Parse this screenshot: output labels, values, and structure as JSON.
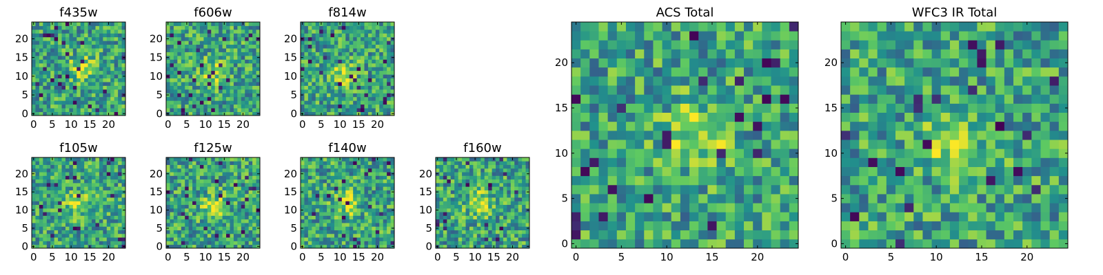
{
  "chart_data": [
    {
      "id": "f435w",
      "type": "heatmap",
      "title": "f435w",
      "grid_size": 25,
      "xlim": [
        -0.5,
        24.5
      ],
      "ylim": [
        -0.5,
        24.5
      ],
      "x_ticks": [
        "0",
        "5",
        "10",
        "15",
        "20"
      ],
      "y_ticks": [
        "0",
        "5",
        "10",
        "15",
        "20"
      ],
      "colormap": "viridis",
      "hotspot": [
        13,
        12
      ],
      "seed": 11
    },
    {
      "id": "f606w",
      "type": "heatmap",
      "title": "f606w",
      "grid_size": 25,
      "xlim": [
        -0.5,
        24.5
      ],
      "ylim": [
        -0.5,
        24.5
      ],
      "x_ticks": [
        "0",
        "5",
        "10",
        "15",
        "20"
      ],
      "y_ticks": [
        "0",
        "5",
        "10",
        "15",
        "20"
      ],
      "colormap": "viridis",
      "hotspot": [
        12,
        11
      ],
      "seed": 23
    },
    {
      "id": "f814w",
      "type": "heatmap",
      "title": "f814w",
      "grid_size": 25,
      "xlim": [
        -0.5,
        24.5
      ],
      "ylim": [
        -0.5,
        24.5
      ],
      "x_ticks": [
        "0",
        "5",
        "10",
        "15",
        "20"
      ],
      "y_ticks": [
        "0",
        "5",
        "10",
        "15",
        "20"
      ],
      "colormap": "viridis",
      "hotspot": [
        11,
        11
      ],
      "seed": 37
    },
    {
      "id": "f105w",
      "type": "heatmap",
      "title": "f105w",
      "grid_size": 25,
      "xlim": [
        -0.5,
        24.5
      ],
      "ylim": [
        -0.5,
        24.5
      ],
      "x_ticks": [
        "0",
        "5",
        "10",
        "15",
        "20"
      ],
      "y_ticks": [
        "0",
        "5",
        "10",
        "15",
        "20"
      ],
      "colormap": "viridis",
      "hotspot": [
        12,
        12
      ],
      "seed": 41
    },
    {
      "id": "f125w",
      "type": "heatmap",
      "title": "f125w",
      "grid_size": 25,
      "xlim": [
        -0.5,
        24.5
      ],
      "ylim": [
        -0.5,
        24.5
      ],
      "x_ticks": [
        "0",
        "5",
        "10",
        "15",
        "20"
      ],
      "y_ticks": [
        "0",
        "5",
        "10",
        "15",
        "20"
      ],
      "colormap": "viridis",
      "hotspot": [
        12,
        11
      ],
      "seed": 53
    },
    {
      "id": "f140w",
      "type": "heatmap",
      "title": "f140w",
      "grid_size": 25,
      "xlim": [
        -0.5,
        24.5
      ],
      "ylim": [
        -0.5,
        24.5
      ],
      "x_ticks": [
        "0",
        "5",
        "10",
        "15",
        "20"
      ],
      "y_ticks": [
        "0",
        "5",
        "10",
        "15",
        "20"
      ],
      "colormap": "viridis",
      "hotspot": [
        12,
        12
      ],
      "seed": 67
    },
    {
      "id": "f160w",
      "type": "heatmap",
      "title": "f160w",
      "grid_size": 25,
      "xlim": [
        -0.5,
        24.5
      ],
      "ylim": [
        -0.5,
        24.5
      ],
      "x_ticks": [
        "0",
        "5",
        "10",
        "15",
        "20"
      ],
      "y_ticks": [
        "0",
        "5",
        "10",
        "15",
        "20"
      ],
      "colormap": "viridis",
      "hotspot": [
        11,
        12
      ],
      "seed": 79
    },
    {
      "id": "acs-total",
      "type": "heatmap",
      "title": "ACS Total",
      "grid_size": 25,
      "xlim": [
        -0.5,
        24.5
      ],
      "ylim": [
        -0.5,
        24.5
      ],
      "x_ticks": [
        "0",
        "5",
        "10",
        "15",
        "20"
      ],
      "y_ticks": [
        "0",
        "5",
        "10",
        "15",
        "20"
      ],
      "colormap": "viridis",
      "hotspot": [
        13,
        12
      ],
      "seed": 83
    },
    {
      "id": "wfc3-total",
      "type": "heatmap",
      "title": "WFC3 IR Total",
      "grid_size": 25,
      "xlim": [
        -0.5,
        24.5
      ],
      "ylim": [
        -0.5,
        24.5
      ],
      "x_ticks": [
        "0",
        "5",
        "10",
        "15",
        "20"
      ],
      "y_ticks": [
        "0",
        "5",
        "10",
        "15",
        "20"
      ],
      "colormap": "viridis",
      "hotspot": [
        12,
        11
      ],
      "seed": 97
    }
  ],
  "colors": {
    "viridis_stops": [
      "#440154",
      "#3b528b",
      "#21918c",
      "#5ec962",
      "#fde725"
    ],
    "axis": "#000000",
    "background": "#ffffff"
  }
}
